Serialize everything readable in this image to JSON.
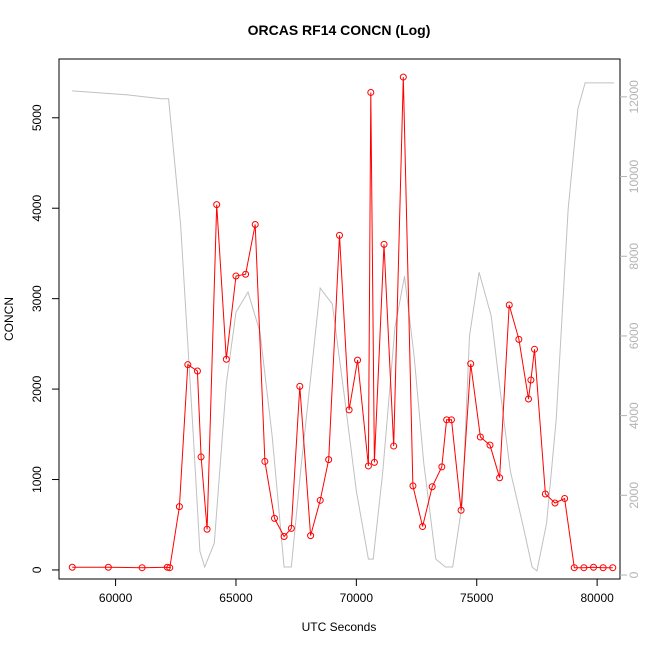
{
  "chart_data": {
    "type": "line",
    "title": "ORCAS RF14 CONCN (Log)",
    "xlabel": "UTC Seconds",
    "ylabel": "CONCN",
    "y2label": "",
    "xlim": [
      57650,
      80950
    ],
    "ylim": [
      -100,
      5650
    ],
    "y2lim": [
      -100,
      12950
    ],
    "x_ticks": [
      60000,
      65000,
      70000,
      75000,
      80000
    ],
    "y_ticks": [
      0,
      1000,
      2000,
      3000,
      4000,
      5000
    ],
    "y2_ticks": [
      0,
      2000,
      4000,
      6000,
      8000,
      10000,
      12000
    ],
    "grid": false,
    "series": [
      {
        "name": "",
        "axis": "left",
        "color": "#ff0000",
        "markers": "open-circle",
        "x": [
          58200,
          59700,
          61100,
          62150,
          62250,
          62650,
          63000,
          63400,
          63550,
          63800,
          64200,
          64600,
          65000,
          65400,
          65800,
          66200,
          66600,
          67000,
          67300,
          67650,
          68100,
          68500,
          68850,
          69300,
          69700,
          70050,
          70500,
          70600,
          70750,
          71150,
          71550,
          71950,
          72350,
          72750,
          73150,
          73550,
          73750,
          73950,
          74350,
          74750,
          75150,
          75550,
          75950,
          76350,
          76750,
          77150,
          77250,
          77400,
          77850,
          78250,
          78650,
          79050,
          79450,
          79850,
          80250,
          80650
        ],
        "y": [
          30,
          30,
          25,
          30,
          25,
          700,
          2270,
          2200,
          1250,
          450,
          4040,
          2330,
          3250,
          3270,
          3820,
          1200,
          570,
          370,
          460,
          2030,
          380,
          770,
          1220,
          3700,
          1770,
          2320,
          1150,
          5280,
          1190,
          3600,
          1370,
          5450,
          930,
          480,
          920,
          1140,
          1660,
          1660,
          660,
          2280,
          1470,
          1380,
          1020,
          2930,
          2550,
          1890,
          2100,
          2440,
          840,
          740,
          790,
          25,
          25,
          30,
          25,
          25
        ]
      },
      {
        "name": "",
        "axis": "right",
        "color": "#c0c0c0",
        "markers": "none",
        "x": [
          58200,
          60500,
          61900,
          62200,
          62700,
          63200,
          63500,
          63700,
          64100,
          64600,
          65000,
          65500,
          66000,
          66500,
          67000,
          67300,
          67700,
          68200,
          68500,
          69000,
          69500,
          70000,
          70500,
          70700,
          71100,
          71600,
          72000,
          72400,
          72800,
          73300,
          73700,
          74000,
          74400,
          74700,
          75100,
          75600,
          76000,
          76400,
          76900,
          77300,
          77500,
          77900,
          78300,
          78800,
          79200,
          79500,
          80700
        ],
        "y": [
          12150,
          12050,
          11950,
          11950,
          8800,
          3800,
          600,
          200,
          800,
          4800,
          6600,
          7100,
          6100,
          3500,
          200,
          200,
          2700,
          5500,
          7200,
          6800,
          4500,
          2100,
          400,
          400,
          2600,
          6200,
          7500,
          5500,
          2800,
          400,
          200,
          200,
          1800,
          6000,
          7600,
          6500,
          4500,
          2600,
          1300,
          200,
          100,
          1300,
          3900,
          9200,
          11700,
          12350,
          12350
        ]
      }
    ]
  }
}
